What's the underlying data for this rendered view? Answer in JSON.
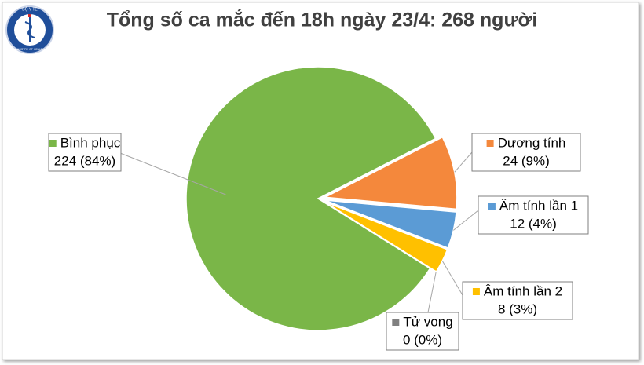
{
  "logo": {
    "top": "BỘ Y TẾ",
    "bottom": "MINISTRY OF HEALTH"
  },
  "chart_data": {
    "type": "pie",
    "title": "Tổng số ca mắc đến 18h ngày 23/4: 268 người",
    "categories": [
      "Bình phục",
      "Dương tính",
      "Âm tính lần 1",
      "Âm tính lần 2",
      "Tử vong"
    ],
    "values": [
      224,
      24,
      12,
      8,
      0
    ],
    "value_labels": [
      "224 (84%)",
      "24 (9%)",
      "12 (4%)",
      "8 (3%)",
      "0 (0%)"
    ],
    "colors": [
      "#7ab648",
      "#f4883c",
      "#5b9bd5",
      "#ffc000",
      "#808080"
    ]
  }
}
